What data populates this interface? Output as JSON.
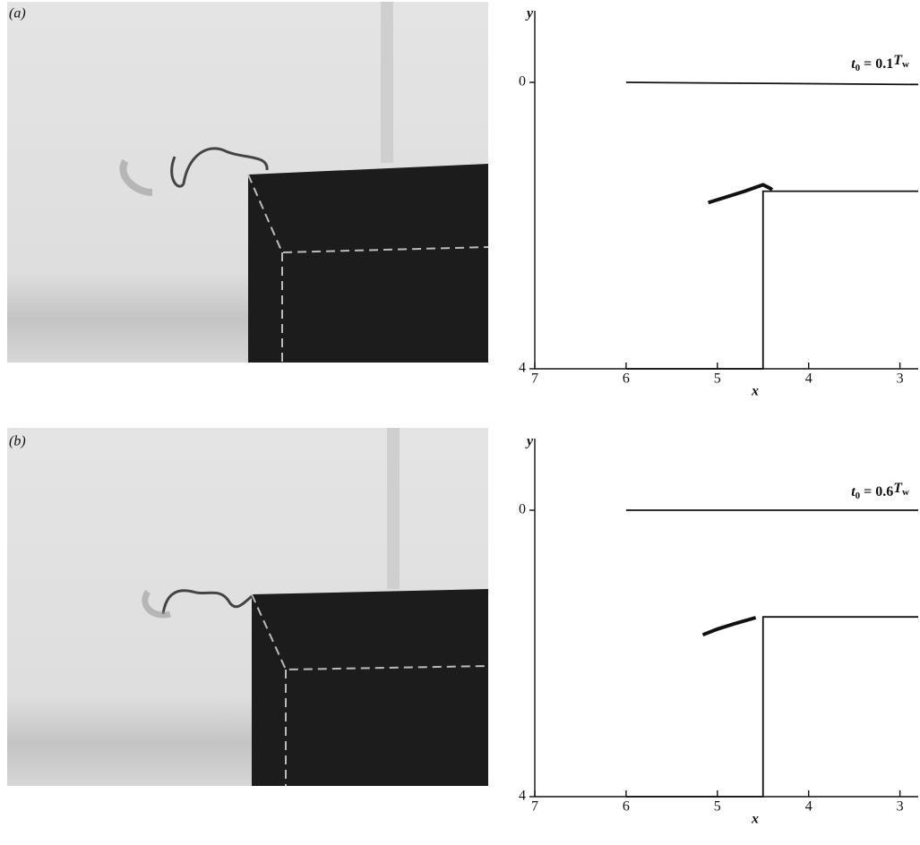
{
  "chart_data": [
    {
      "type": "line",
      "panel_label": "(a)",
      "annotation": [
        "t",
        "0",
        " = 0.1",
        "T",
        "w"
      ],
      "x_label": "x",
      "y_label": "y",
      "color": "#111111",
      "xlim": [
        7,
        2.8
      ],
      "xticks": [
        7,
        6,
        5,
        4,
        3
      ],
      "ylim": [
        4,
        -1
      ],
      "yticks": [
        0,
        4
      ],
      "lines": [
        {
          "x": [
            6,
            2.8
          ],
          "y": [
            0,
            0.03
          ]
        },
        {
          "x": [
            6,
            4.5,
            4.5,
            2.8
          ],
          "y": [
            4,
            4,
            1.52,
            1.52
          ]
        },
        {
          "x": [
            5.1,
            4.9,
            4.7,
            4.5,
            4.42,
            4.4
          ],
          "y": [
            1.68,
            1.6,
            1.52,
            1.43,
            1.48,
            1.5
          ]
        }
      ]
    },
    {
      "type": "line",
      "panel_label": "(b)",
      "annotation": [
        "t",
        "0",
        " = 0.6",
        "T",
        "w"
      ],
      "x_label": "x",
      "y_label": "y",
      "color": "#111111",
      "xlim": [
        7,
        2.8
      ],
      "xticks": [
        7,
        6,
        5,
        4,
        3
      ],
      "ylim": [
        4,
        -1
      ],
      "yticks": [
        0,
        4
      ],
      "lines": [
        {
          "x": [
            6,
            2.8
          ],
          "y": [
            0,
            0
          ]
        },
        {
          "x": [
            6,
            4.5,
            4.5,
            2.8
          ],
          "y": [
            4,
            4,
            1.49,
            1.49
          ]
        },
        {
          "x": [
            5.16,
            5.0,
            4.8,
            4.58
          ],
          "y": [
            1.74,
            1.66,
            1.58,
            1.5
          ]
        }
      ]
    }
  ]
}
